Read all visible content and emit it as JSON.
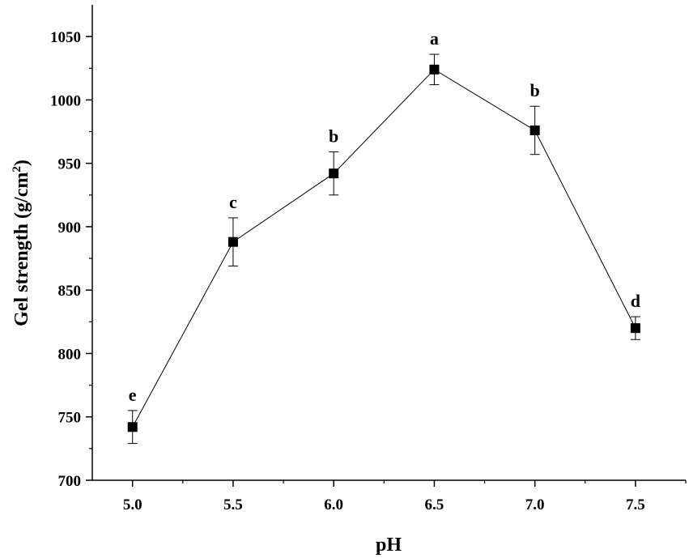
{
  "chart_data": {
    "type": "line",
    "xlabel": "pH",
    "ylabel": "Gel strength (g/cm",
    "ylabel_superscript": "2",
    "ylabel_close": ")",
    "xlim": [
      4.8,
      7.75
    ],
    "ylim": [
      700,
      1075
    ],
    "x_ticks": [
      "5.0",
      "5.5",
      "6.0",
      "6.5",
      "7.0",
      "7.5"
    ],
    "y_ticks": [
      "700",
      "750",
      "800",
      "850",
      "900",
      "950",
      "1000",
      "1050"
    ],
    "grid": false,
    "series": [
      {
        "marker": "square",
        "color": "#000000",
        "points": [
          {
            "x": 5.0,
            "y": 742,
            "err": 13,
            "label": "e"
          },
          {
            "x": 5.5,
            "y": 888,
            "err": 19,
            "label": "c"
          },
          {
            "x": 6.0,
            "y": 942,
            "err": 17,
            "label": "b"
          },
          {
            "x": 6.5,
            "y": 1024,
            "err": 12,
            "label": "a"
          },
          {
            "x": 7.0,
            "y": 976,
            "err": 19,
            "label": "b"
          },
          {
            "x": 7.5,
            "y": 820,
            "err": 9,
            "label": "d"
          }
        ]
      }
    ]
  }
}
